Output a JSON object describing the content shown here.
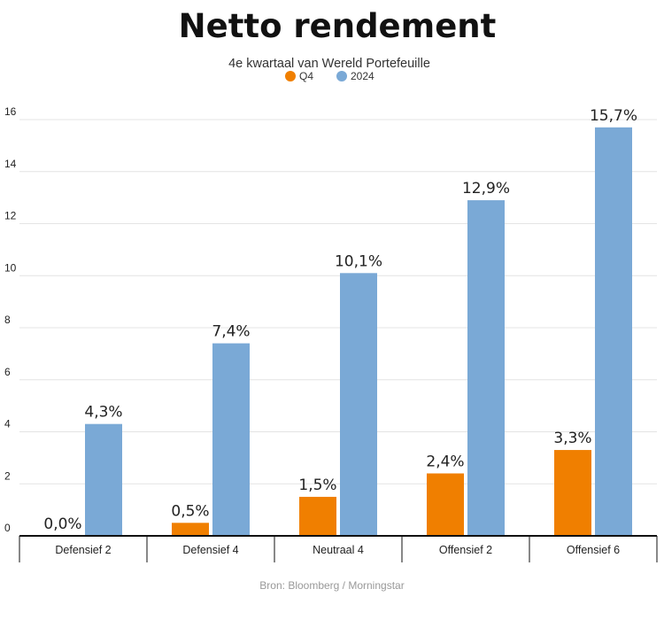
{
  "chart_data": {
    "type": "bar",
    "title": "Netto rendement",
    "subtitle": "4e kwartaal van Wereld Portefeuille",
    "categories": [
      "Defensief 2",
      "Defensief 4",
      "Neutraal 4",
      "Offensief 2",
      "Offensief 6"
    ],
    "series": [
      {
        "name": "Q4",
        "color": "#f07f00",
        "values": [
          0.0,
          0.5,
          1.5,
          2.4,
          3.3
        ],
        "labels": [
          "0,0%",
          "0,5%",
          "1,5%",
          "2,4%",
          "3,3%"
        ]
      },
      {
        "name": "2024",
        "color": "#7aa9d6",
        "values": [
          4.3,
          7.4,
          10.1,
          12.9,
          15.7
        ],
        "labels": [
          "4,3%",
          "7,4%",
          "10,1%",
          "12,9%",
          "15,7%"
        ]
      }
    ],
    "yticks": [
      "0",
      "2",
      "4",
      "6",
      "8",
      "10",
      "12",
      "14",
      "16"
    ],
    "ylim": [
      0,
      16
    ],
    "grid": true,
    "legend_position": "top-center",
    "source": "Bron: Bloomberg / Morningstar"
  }
}
